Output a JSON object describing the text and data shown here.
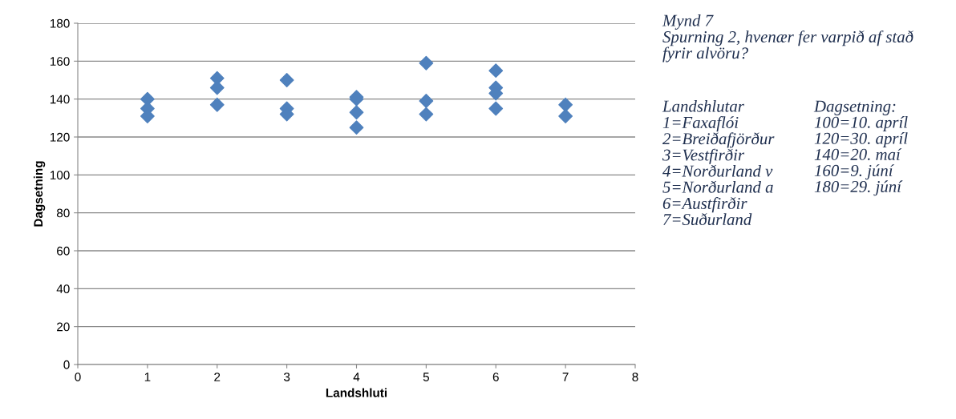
{
  "chart_data": {
    "type": "scatter",
    "xlabel": "Landshluti",
    "ylabel": "Dagsetning",
    "series": [
      {
        "color": "#4f81bd",
        "x": [
          1,
          1,
          1,
          2,
          2,
          2,
          3,
          3,
          3,
          4,
          4,
          4,
          4,
          5,
          5,
          5,
          6,
          6,
          6,
          6,
          7,
          7
        ],
        "values": [
          140,
          135,
          131,
          151,
          146,
          137,
          150,
          135,
          132,
          141,
          140,
          133,
          125,
          159,
          139,
          132,
          155,
          146,
          143,
          135,
          137,
          131
        ]
      }
    ],
    "xlim": [
      0,
      8
    ],
    "xticks": [
      0,
      1,
      2,
      3,
      4,
      5,
      6,
      7,
      8
    ],
    "ylim": [
      0,
      180
    ],
    "yticks": [
      0,
      20,
      40,
      60,
      80,
      100,
      120,
      140,
      160,
      180
    ],
    "grid": "y",
    "marker": "diamond",
    "legend": false,
    "annotations": [
      "Mynd 7\nSpurning 2, hvenær fer varpið af stað\nfyrir alvöru?",
      "Landshlutar\n1=Faxaflói\n2=Breiðafjörður\n3=Vestfirðir\n4=Norðurland v\n5=Norðurland a\n6=Austfirðir\n7=Suðurland",
      "Dagsetning:\n100=10. apríl\n120=30. apríl\n140=20. maí\n160=9. júní\n180=29. júní"
    ]
  }
}
